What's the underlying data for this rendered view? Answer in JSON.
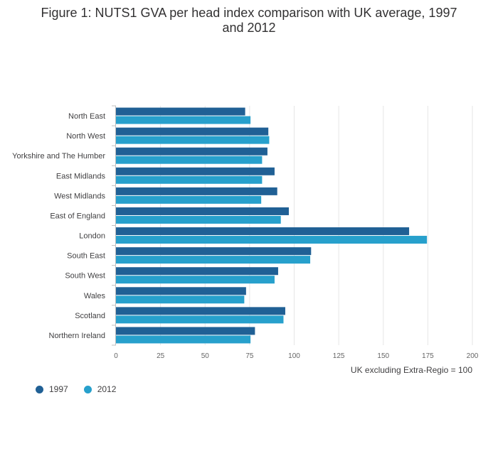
{
  "title_lines": [
    "Figure 1: NUTS1 GVA per head index comparison with UK average, 1997",
    "and 2012"
  ],
  "chart_data": {
    "type": "bar",
    "orientation": "horizontal",
    "title": "Figure 1: NUTS1 GVA per head index comparison with UK average, 1997 and 2012",
    "xlabel": "UK excluding Extra-Regio = 100",
    "ylabel": "",
    "xlim": [
      0,
      200
    ],
    "xticks": [
      0,
      25,
      50,
      75,
      100,
      125,
      150,
      175,
      200
    ],
    "grid": true,
    "legend_position": "bottom-left",
    "categories": [
      "North East",
      "North West",
      "Yorkshire and The Humber",
      "East Midlands",
      "West Midlands",
      "East of England",
      "London",
      "South East",
      "South West",
      "Wales",
      "Scotland",
      "Northern Ireland"
    ],
    "series": [
      {
        "name": "1997",
        "color": "#206095",
        "values": [
          72.5,
          85.5,
          85,
          89,
          90.5,
          97,
          164.5,
          109.5,
          91,
          73,
          95,
          78
        ]
      },
      {
        "name": "2012",
        "color": "#27a0cc",
        "values": [
          75.5,
          86,
          82,
          82,
          81.5,
          92.5,
          174.5,
          109,
          89,
          72,
          94,
          75.5
        ]
      }
    ]
  }
}
